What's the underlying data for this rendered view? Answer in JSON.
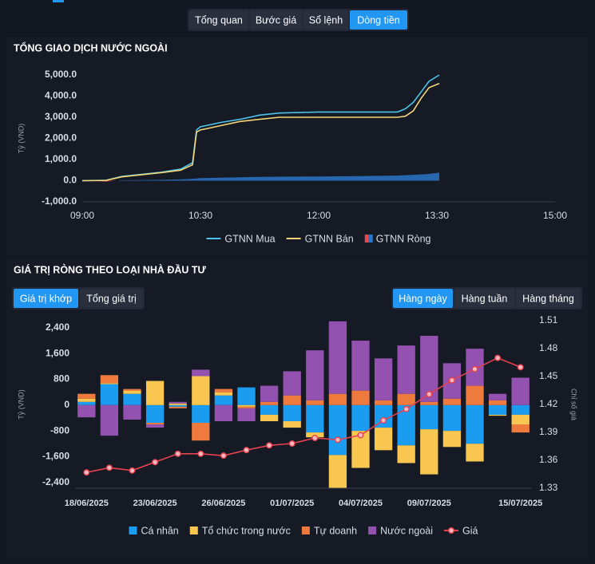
{
  "tabs": {
    "items": [
      "Tổng quan",
      "Bước giá",
      "Sổ lệnh",
      "Dòng tiền"
    ],
    "active": 3
  },
  "value_toggle": {
    "items": [
      "Giá trị khớp",
      "Tổng giá trị"
    ],
    "active": 0
  },
  "period_toggle": {
    "items": [
      "Hàng ngày",
      "Hàng tuần",
      "Hàng tháng"
    ],
    "active": 0
  },
  "chart_data": [
    {
      "type": "line",
      "title": "TỔNG GIAO DỊCH NƯỚC NGOÀI",
      "ylabel": "Tỷ (VND)",
      "x": [
        9.0,
        9.3,
        9.5,
        9.75,
        10.0,
        10.25,
        10.4,
        10.45,
        10.5,
        10.75,
        11.0,
        11.25,
        11.5,
        12.0,
        12.5,
        13.0,
        13.1,
        13.2,
        13.3,
        13.4,
        13.53
      ],
      "xlim": [
        9,
        15
      ],
      "xticks": [
        {
          "value": 9,
          "label": "09:00"
        },
        {
          "value": 10.5,
          "label": "10:30"
        },
        {
          "value": 12,
          "label": "12:00"
        },
        {
          "value": 13.5,
          "label": "13:30"
        },
        {
          "value": 15,
          "label": "15:00"
        }
      ],
      "ylim": [
        -1000,
        5000
      ],
      "yticks": [
        {
          "value": -1000,
          "label": "-1,000.0"
        },
        {
          "value": 0,
          "label": "0.0"
        },
        {
          "value": 1000,
          "label": "1,000.0"
        },
        {
          "value": 2000,
          "label": "2,000.0"
        },
        {
          "value": 3000,
          "label": "3,000.0"
        },
        {
          "value": 4000,
          "label": "4,000.0"
        },
        {
          "value": 5000,
          "label": "5,000.0"
        }
      ],
      "legend": "bottom",
      "series": [
        {
          "name": "GTNN Mua",
          "color": "#4cc3e9",
          "values": [
            0,
            20,
            200,
            300,
            400,
            550,
            850,
            2400,
            2550,
            2750,
            2900,
            3100,
            3200,
            3250,
            3250,
            3250,
            3400,
            3700,
            4200,
            4700,
            5000
          ]
        },
        {
          "name": "GTNN Bán",
          "color": "#f3d67a",
          "values": [
            0,
            10,
            180,
            280,
            380,
            500,
            750,
            2300,
            2400,
            2600,
            2800,
            2900,
            3000,
            3000,
            3000,
            3000,
            3050,
            3300,
            3900,
            4400,
            4600
          ]
        },
        {
          "name": "GTNN Ròng",
          "type": "area",
          "color": "#2a76c6",
          "negative_color": "#e5484d",
          "values": [
            0,
            -40,
            20,
            30,
            40,
            60,
            90,
            100,
            120,
            140,
            160,
            180,
            190,
            200,
            220,
            240,
            260,
            280,
            300,
            320,
            380
          ]
        }
      ]
    },
    {
      "type": "bar",
      "stacked": true,
      "title": "GIÁ TRỊ RÒNG THEO LOẠI NHÀ ĐẦU TƯ",
      "ylabel": "Tỷ (VND)",
      "y2label": "Chỉ số giá",
      "categories": [
        "18/06/2025",
        null,
        null,
        "23/06/2025",
        null,
        null,
        "26/06/2025",
        null,
        null,
        "01/07/2025",
        null,
        null,
        "04/07/2025",
        null,
        null,
        "09/07/2025",
        null,
        null,
        null,
        "15/07/2025"
      ],
      "ylim": [
        -2580,
        2620
      ],
      "yticks": [
        {
          "value": -2400,
          "label": "-2,400"
        },
        {
          "value": -1600,
          "label": "-1,600"
        },
        -800,
        0,
        800,
        {
          "value": 1600,
          "label": "1,600"
        },
        {
          "value": 2400,
          "label": "2,400"
        }
      ],
      "y2lim": [
        1.33,
        1.51
      ],
      "y2ticks": [
        1.33,
        1.36,
        1.39,
        1.42,
        1.45,
        1.48,
        1.51
      ],
      "legend": "bottom",
      "series": [
        {
          "name": "Cá nhân",
          "color": "#1a9cf0",
          "values": [
            100,
            650,
            350,
            -550,
            -50,
            -550,
            300,
            550,
            -300,
            -500,
            -850,
            -1550,
            -800,
            -700,
            -1250,
            -750,
            -800,
            -1200,
            -300,
            -300
          ]
        },
        {
          "name": "Tổ chức trong nước",
          "color": "#f9c74f",
          "values": [
            100,
            30,
            100,
            750,
            50,
            900,
            100,
            -50,
            -200,
            -200,
            -150,
            -1050,
            -1150,
            -700,
            -550,
            -1400,
            -500,
            -550,
            -30,
            -300
          ]
        },
        {
          "name": "Tự doanh",
          "color": "#ef7a3e",
          "values": [
            150,
            250,
            50,
            -50,
            -50,
            -550,
            100,
            -50,
            100,
            300,
            150,
            350,
            450,
            150,
            350,
            100,
            200,
            600,
            150,
            -250
          ]
        },
        {
          "name": "Nước ngoài",
          "color": "#9352b0",
          "values": [
            -380,
            -950,
            -450,
            -100,
            50,
            200,
            -500,
            -400,
            500,
            750,
            1550,
            2250,
            1550,
            1300,
            1500,
            2050,
            1100,
            1150,
            200,
            850
          ]
        },
        {
          "name": "Giá",
          "type": "line",
          "axis": "y2",
          "color": "#e8414f",
          "values": [
            1.347,
            1.352,
            1.349,
            1.358,
            1.367,
            1.367,
            1.365,
            1.371,
            1.376,
            1.378,
            1.384,
            1.382,
            1.387,
            1.403,
            1.415,
            1.431,
            1.446,
            1.458,
            1.47,
            1.46
          ]
        }
      ]
    }
  ]
}
